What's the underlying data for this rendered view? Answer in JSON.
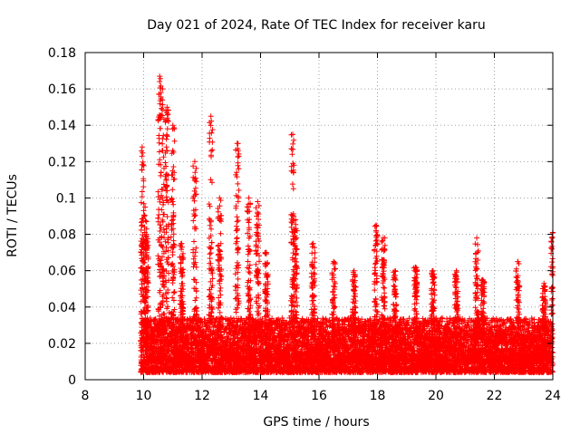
{
  "chart_data": {
    "type": "scatter",
    "title": "Day 021 of 2024, Rate Of TEC Index for receiver karu",
    "xlabel": "GPS time / hours",
    "ylabel": "ROTI / TECUs",
    "xlim": [
      8,
      24
    ],
    "ylim": [
      0,
      0.18
    ],
    "xticks": [
      8,
      10,
      12,
      14,
      16,
      18,
      20,
      22,
      24
    ],
    "yticks": [
      0,
      0.02,
      0.04,
      0.06,
      0.08,
      0.1,
      0.12,
      0.14,
      0.16,
      0.18
    ],
    "xtick_labels": [
      "8",
      "10",
      "12",
      "14",
      "16",
      "18",
      "20",
      "22",
      "24"
    ],
    "ytick_labels": [
      "0",
      "0.02",
      "0.04",
      "0.06",
      "0.08",
      "0.1",
      "0.12",
      "0.14",
      "0.16",
      "0.18"
    ],
    "grid": true,
    "marker": "+",
    "marker_color": "#ff0000",
    "series": [
      {
        "name": "karu",
        "envelope_note": "approximate upper envelope of dense point cloud; dense band ~0.005-0.03 TECU from 9.9 h to 24 h",
        "peaks": [
          {
            "x": 9.95,
            "y": 0.128
          },
          {
            "x": 10.05,
            "y": 0.095
          },
          {
            "x": 10.1,
            "y": 0.08
          },
          {
            "x": 10.55,
            "y": 0.167
          },
          {
            "x": 10.65,
            "y": 0.16
          },
          {
            "x": 10.8,
            "y": 0.15
          },
          {
            "x": 11.0,
            "y": 0.14
          },
          {
            "x": 11.3,
            "y": 0.075
          },
          {
            "x": 11.75,
            "y": 0.12
          },
          {
            "x": 12.3,
            "y": 0.145
          },
          {
            "x": 12.6,
            "y": 0.1
          },
          {
            "x": 13.2,
            "y": 0.13
          },
          {
            "x": 13.6,
            "y": 0.1
          },
          {
            "x": 13.9,
            "y": 0.098
          },
          {
            "x": 14.2,
            "y": 0.07
          },
          {
            "x": 15.1,
            "y": 0.135
          },
          {
            "x": 15.2,
            "y": 0.088
          },
          {
            "x": 15.8,
            "y": 0.075
          },
          {
            "x": 16.5,
            "y": 0.065
          },
          {
            "x": 17.2,
            "y": 0.06
          },
          {
            "x": 17.95,
            "y": 0.085
          },
          {
            "x": 18.2,
            "y": 0.078
          },
          {
            "x": 18.6,
            "y": 0.06
          },
          {
            "x": 19.3,
            "y": 0.062
          },
          {
            "x": 19.9,
            "y": 0.06
          },
          {
            "x": 20.7,
            "y": 0.06
          },
          {
            "x": 21.4,
            "y": 0.078
          },
          {
            "x": 21.6,
            "y": 0.055
          },
          {
            "x": 22.8,
            "y": 0.065
          },
          {
            "x": 23.7,
            "y": 0.053
          },
          {
            "x": 24.0,
            "y": 0.081
          }
        ]
      }
    ]
  }
}
